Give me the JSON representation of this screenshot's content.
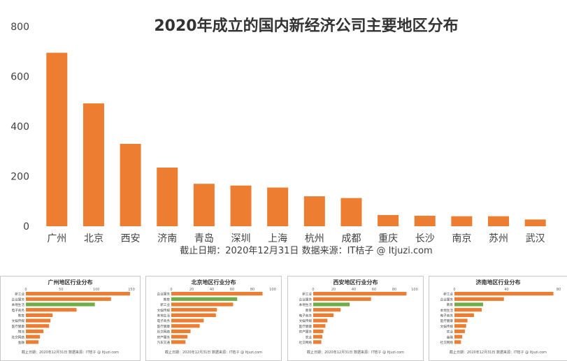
{
  "chart_data": [
    {
      "type": "bar",
      "title": "2020年成立的国内新经济公司主要地区分布",
      "categories": [
        "广州",
        "北京",
        "西安",
        "济南",
        "青岛",
        "深圳",
        "上海",
        "杭州",
        "成都",
        "重庆",
        "长沙",
        "南京",
        "苏州",
        "武汉"
      ],
      "values": [
        695,
        492,
        330,
        235,
        170,
        163,
        155,
        120,
        113,
        45,
        42,
        40,
        40,
        27
      ],
      "ylim": [
        0,
        800
      ],
      "yticks": [
        0,
        200,
        400,
        600,
        800
      ],
      "bar_color": "#ED7D31",
      "footnote": "截止日期：2020年12月31日     数据来源：IT桔子 @ Itjuzi.com"
    },
    {
      "type": "bar",
      "orientation": "horizontal",
      "title": "广州地区行业分布",
      "categories": [
        "新工业",
        "企业服务",
        "本地生活",
        "电子商务",
        "教育",
        "文娱传媒",
        "医疗健康",
        "物流",
        "社交网络",
        "金融"
      ],
      "values": [
        148,
        121,
        98,
        72,
        38,
        35,
        33,
        25,
        20,
        18
      ],
      "highlight_index": 2,
      "xlim": [
        0,
        150
      ],
      "xticks": [
        0,
        50,
        100,
        150
      ],
      "footnote": "截止日期：2020年12月31日   数据来源：IT桔子 @ Itjuzi.com"
    },
    {
      "type": "bar",
      "orientation": "horizontal",
      "title": "北京地区行业分布",
      "categories": [
        "企业服务",
        "教育",
        "新工业",
        "文娱传媒",
        "本地生活",
        "电子商务",
        "医疗健康",
        "社交网络",
        "房产服务",
        "汽车交通"
      ],
      "values": [
        90,
        65,
        61,
        45,
        44,
        32,
        28,
        19,
        16,
        14
      ],
      "highlight_index": 1,
      "xlim": [
        0,
        100
      ],
      "xticks": [
        0,
        20,
        40,
        60,
        80,
        100
      ],
      "footnote": "截止日期：2020年12月31日   数据来源：IT桔子 @ Itjuzi.com"
    },
    {
      "type": "bar",
      "orientation": "horizontal",
      "title": "西安地区行业分布",
      "categories": [
        "新工业",
        "企业服务",
        "本地生活",
        "教育",
        "电子商务",
        "文娱传媒",
        "医疗健康",
        "房产服务",
        "农业",
        "社交网络"
      ],
      "values": [
        92,
        57,
        36,
        27,
        20,
        14,
        12,
        10,
        9,
        8
      ],
      "highlight_index": 2,
      "xlim": [
        0,
        100
      ],
      "xticks": [
        0,
        20,
        40,
        60,
        80,
        100
      ],
      "footnote": "截止日期：2020年12月31日   数据来源：IT桔子 @ Itjuzi.com"
    },
    {
      "type": "bar",
      "orientation": "horizontal",
      "title": "济南地区行业分布",
      "categories": [
        "新工业",
        "企业服务",
        "教育",
        "本地生活",
        "电子商务",
        "医疗健康",
        "文娱传媒",
        "农业",
        "金融",
        "社交网络"
      ],
      "values": [
        76,
        38,
        22,
        21,
        15,
        10,
        9,
        8,
        6,
        5
      ],
      "highlight_index": 2,
      "xlim": [
        0,
        80
      ],
      "xticks": [
        0,
        40,
        80
      ],
      "footnote": "截止日期：2020年12月31日   数据来源：IT桔子 @ Itjuzi.com"
    }
  ],
  "colors": {
    "bar": "#ED7D31",
    "highlight": "#70AD47",
    "text": "#404040"
  }
}
